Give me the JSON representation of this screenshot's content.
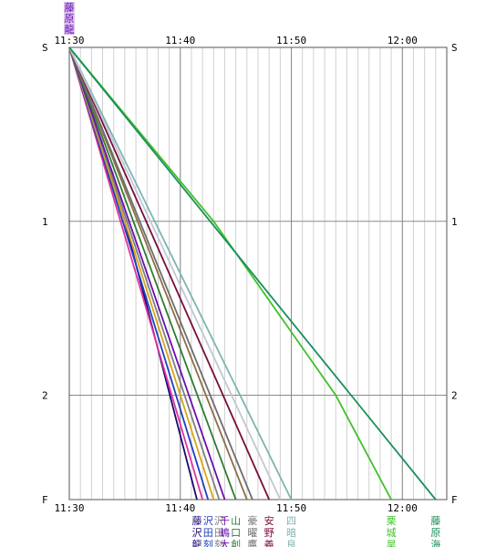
{
  "chart_data": {
    "type": "line",
    "x_unit": "time",
    "x_ticks": [
      "11:30",
      "11:40",
      "11:50",
      "12:00"
    ],
    "x_range": [
      "11:30",
      "12:04"
    ],
    "y_ticks": [
      "S",
      "1",
      "2",
      "F"
    ],
    "y_range": [
      0,
      2.6
    ],
    "grid": true,
    "top_label_column": [
      "藤",
      "原",
      "龍"
    ],
    "series": [
      {
        "color": "#1a0a6e",
        "x": [
          "11:30",
          "11:35",
          "11:41:30"
        ],
        "y": [
          0,
          1.0,
          2.6
        ],
        "label": [
          "藤",
          "沢",
          "龍"
        ]
      },
      {
        "color": "#e0339e",
        "x": [
          "11:30",
          "11:42"
        ],
        "y": [
          0,
          2.6
        ],
        "label": []
      },
      {
        "color": "#1f3fbf",
        "x": [
          "11:30",
          "11:42:30"
        ],
        "y": [
          0,
          2.6
        ],
        "label": [
          "沢",
          "田",
          "刻"
        ]
      },
      {
        "color": "#d9a41a",
        "x": [
          "11:30",
          "11:43"
        ],
        "y": [
          0,
          2.6
        ],
        "label": []
      },
      {
        "color": "#7f7f7f",
        "x": [
          "11:30",
          "11:43:30"
        ],
        "y": [
          0,
          2.6
        ],
        "label": [
          "沢",
          "田",
          "刻"
        ]
      },
      {
        "color": "#6a0dad",
        "x": [
          "11:30",
          "11:44"
        ],
        "y": [
          0,
          2.6
        ],
        "label": [
          "千",
          "嶋",
          "大"
        ]
      },
      {
        "color": "#2e7d32",
        "x": [
          "11:30",
          "11:45"
        ],
        "y": [
          0,
          2.6
        ],
        "label": [
          "山",
          "口",
          "創"
        ]
      },
      {
        "color": "#8b6f47",
        "x": [
          "11:30",
          "11:46"
        ],
        "y": [
          0,
          2.6
        ],
        "label": []
      },
      {
        "color": "#6d6d6d",
        "x": [
          "11:30",
          "11:46:30"
        ],
        "y": [
          0,
          2.6
        ],
        "label": [
          "豪",
          "曜",
          "鷹"
        ]
      },
      {
        "color": "#7a0d3a",
        "x": [
          "11:30",
          "11:48"
        ],
        "y": [
          0,
          2.6
        ],
        "label": [
          "安",
          "野",
          "義"
        ]
      },
      {
        "color": "#7fb3b3",
        "x": [
          "11:30",
          "11:50"
        ],
        "y": [
          0,
          2.6
        ],
        "label": [
          "四",
          "暗",
          "良"
        ]
      },
      {
        "color": "#c0c8d4",
        "x": [
          "11:30",
          "11:49"
        ],
        "y": [
          0,
          2.6
        ],
        "label": []
      },
      {
        "color": "#41c02a",
        "x": [
          "11:30",
          "11:43",
          "11:54",
          "11:59"
        ],
        "y": [
          0,
          1.0,
          2.0,
          2.6
        ],
        "label": [
          "栗",
          "城",
          "昊"
        ]
      },
      {
        "color": "#1a8f5a",
        "x": [
          "11:30",
          "12:03"
        ],
        "y": [
          0,
          2.6
        ],
        "label": [
          "藤",
          "原",
          "海"
        ]
      }
    ]
  }
}
